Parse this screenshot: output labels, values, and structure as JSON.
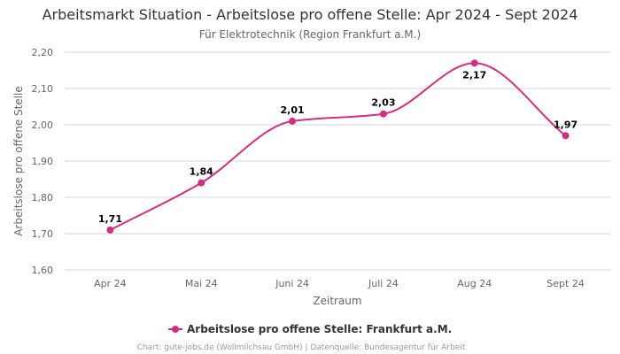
{
  "chart_data": {
    "type": "line",
    "title": "Arbeitsmarkt Situation - Arbeitslose pro offene Stelle: Apr 2024 - Sept 2024",
    "subtitle": "Für Elektrotechnik (Region Frankfurt a.M.)",
    "xlabel": "Zeitraum",
    "ylabel": "Arbeitslose pro offene Stelle",
    "categories": [
      "Apr 24",
      "Mai 24",
      "Juni 24",
      "Juli 24",
      "Aug 24",
      "Sept 24"
    ],
    "ylim": [
      1.6,
      2.2
    ],
    "yticks": [
      "1,60",
      "1,70",
      "1,80",
      "1,90",
      "2,00",
      "2,10",
      "2,20"
    ],
    "grid": true,
    "legend_position": "bottom-center",
    "series": [
      {
        "name": "Arbeitslose pro offene Stelle: Frankfurt a.M.",
        "values": [
          1.71,
          1.84,
          2.01,
          2.03,
          2.17,
          1.97
        ],
        "labels": [
          "1,71",
          "1,84",
          "2,01",
          "2,03",
          "2,17",
          "1,97"
        ],
        "color": "#d12f84"
      }
    ],
    "credits": "Chart: gute-jobs.de (Wollmilchsau GmbH) | Datenquelle: Bundesagentur für Arbeit"
  }
}
